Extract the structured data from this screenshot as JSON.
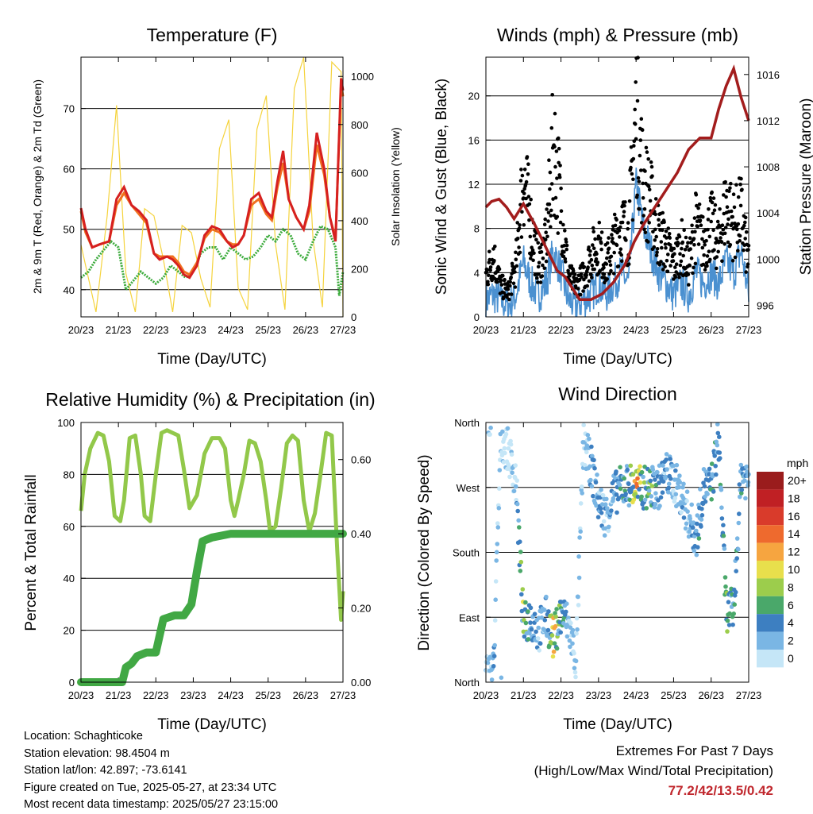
{
  "chart_data": [
    {
      "type": "line",
      "title": "Temperature (F)",
      "xlabel": "Time (Day/UTC)",
      "ylabel": "2m & 9m T (Red, Orange) & 2m Td (Green)",
      "ylabel_right": "Solar Insolation (Yellow)",
      "x_ticks": [
        "20/23",
        "21/23",
        "22/23",
        "23/23",
        "24/23",
        "25/23",
        "26/23",
        "27/23"
      ],
      "xlim": [
        0,
        7
      ],
      "ylim": [
        35.5,
        78.5
      ],
      "y_ticks": [
        40,
        50,
        60,
        70
      ],
      "ylim_right": [
        0,
        1080
      ],
      "y_ticks_right": [
        0,
        200,
        400,
        600,
        800,
        1000
      ],
      "grid": "horizontal",
      "series": [
        {
          "name": "2m T",
          "color": "#d62020",
          "x": [
            0,
            0.12,
            0.3,
            0.5,
            0.75,
            0.95,
            1.15,
            1.35,
            1.55,
            1.75,
            1.95,
            2.1,
            2.3,
            2.45,
            2.6,
            2.75,
            2.9,
            3.1,
            3.3,
            3.5,
            3.7,
            3.9,
            4.05,
            4.2,
            4.35,
            4.55,
            4.75,
            4.95,
            5.1,
            5.25,
            5.4,
            5.55,
            5.75,
            5.95,
            6.1,
            6.3,
            6.5,
            6.65,
            6.8,
            6.95,
            7
          ],
          "y": [
            53.5,
            50,
            47,
            47.5,
            48,
            55,
            57,
            54,
            53,
            51.5,
            46,
            45,
            45.5,
            45,
            44,
            42.5,
            42,
            44,
            49,
            50.5,
            50,
            48,
            47,
            47.5,
            49,
            55,
            56,
            53,
            52,
            58,
            63,
            55,
            52,
            50,
            54,
            66,
            60,
            52,
            48,
            75,
            73
          ]
        },
        {
          "name": "9m T",
          "color": "#f07020",
          "x": [
            0,
            0.12,
            0.3,
            0.5,
            0.75,
            0.95,
            1.15,
            1.35,
            1.55,
            1.75,
            1.95,
            2.1,
            2.3,
            2.45,
            2.6,
            2.75,
            2.9,
            3.1,
            3.3,
            3.5,
            3.7,
            3.9,
            4.05,
            4.2,
            4.35,
            4.55,
            4.75,
            4.95,
            5.1,
            5.25,
            5.4,
            5.55,
            5.75,
            5.95,
            6.1,
            6.3,
            6.5,
            6.65,
            6.8,
            6.95,
            7
          ],
          "y": [
            53,
            49.5,
            47,
            47.5,
            48,
            54,
            56,
            54,
            52.5,
            51,
            46,
            45.5,
            45.5,
            45.5,
            44.5,
            43,
            42.5,
            44.5,
            48.5,
            50,
            49.5,
            48,
            47.5,
            47.5,
            49,
            54,
            55,
            52.5,
            51.5,
            57,
            61,
            55,
            52,
            50,
            53,
            64,
            59,
            52,
            48.5,
            74,
            72
          ]
        },
        {
          "name": "2m Td",
          "color": "#3cab3c",
          "x": [
            0,
            0.2,
            0.4,
            0.6,
            0.8,
            1,
            1.2,
            1.4,
            1.6,
            1.8,
            2,
            2.2,
            2.4,
            2.6,
            2.8,
            3,
            3.2,
            3.4,
            3.6,
            3.8,
            4,
            4.2,
            4.4,
            4.6,
            4.8,
            5,
            5.2,
            5.4,
            5.6,
            5.8,
            6,
            6.2,
            6.4,
            6.6,
            6.8,
            6.9,
            7
          ],
          "y": [
            42,
            43,
            45,
            46.5,
            48,
            47,
            40,
            41.5,
            43,
            42,
            41,
            42,
            44,
            43,
            42,
            43,
            46,
            47,
            47,
            45,
            47,
            46,
            45,
            45.5,
            47,
            49,
            48,
            50,
            49,
            46,
            45,
            48,
            50.5,
            50,
            47,
            39,
            43
          ]
        },
        {
          "name": "Solar Insolation",
          "axis": "right",
          "color": "#f5d33c",
          "x": [
            0,
            0.4,
            0.7,
            0.95,
            1.2,
            1.45,
            1.7,
            1.95,
            2.2,
            2.45,
            2.7,
            2.95,
            3.2,
            3.45,
            3.7,
            3.95,
            4.2,
            4.45,
            4.7,
            4.95,
            5.2,
            5.45,
            5.7,
            5.95,
            6.2,
            6.45,
            6.7,
            6.95,
            7
          ],
          "y": [
            300,
            20,
            420,
            880,
            180,
            20,
            450,
            420,
            240,
            20,
            380,
            350,
            160,
            40,
            700,
            820,
            120,
            30,
            780,
            920,
            300,
            30,
            950,
            1080,
            320,
            40,
            1060,
            1020,
            0
          ]
        }
      ]
    },
    {
      "type": "scatter",
      "title": "Winds (mph) & Pressure (mb)",
      "xlabel": "Time (Day/UTC)",
      "ylabel": "Sonic Wind & Gust (Blue, Black)",
      "ylabel_right": "Station Pressure (Maroon)",
      "x_ticks": [
        "20/23",
        "21/23",
        "22/23",
        "23/23",
        "24/23",
        "25/23",
        "26/23",
        "27/23"
      ],
      "xlim": [
        0,
        7
      ],
      "ylim": [
        0,
        23.5
      ],
      "y_ticks": [
        0,
        4,
        8,
        12,
        16,
        20
      ],
      "ylim_right": [
        995,
        1017.5
      ],
      "y_ticks_right": [
        996,
        1000,
        1004,
        1008,
        1012,
        1016
      ],
      "grid": "horizontal",
      "series": [
        {
          "name": "Sonic Wind",
          "color": "#4a90d0",
          "x": [
            0,
            0.2,
            0.4,
            0.6,
            0.8,
            1,
            1.2,
            1.4,
            1.6,
            1.8,
            2,
            2.2,
            2.4,
            2.6,
            2.8,
            3,
            3.2,
            3.4,
            3.6,
            3.8,
            4,
            4.2,
            4.4,
            4.6,
            4.8,
            5,
            5.2,
            5.4,
            5.6,
            5.8,
            6,
            6.2,
            6.4,
            6.6,
            6.8,
            7
          ],
          "y": [
            1.5,
            2,
            1.5,
            1,
            2,
            5,
            3,
            2,
            3,
            6,
            4,
            1.5,
            1,
            1.5,
            2,
            3,
            2,
            3,
            4,
            3,
            12,
            8,
            6,
            4,
            3,
            2,
            3,
            2,
            4,
            3,
            4,
            3,
            5,
            4,
            6,
            2
          ]
        },
        {
          "name": "Gust",
          "color": "#000000",
          "x": [
            0,
            0.2,
            0.4,
            0.6,
            0.8,
            1,
            1.2,
            1.4,
            1.6,
            1.8,
            2,
            2.2,
            2.4,
            2.6,
            2.8,
            3,
            3.2,
            3.4,
            3.6,
            3.8,
            4,
            4.2,
            4.4,
            4.6,
            4.8,
            5,
            5.2,
            5.4,
            5.6,
            5.8,
            6,
            6.2,
            6.4,
            6.6,
            6.8,
            7
          ],
          "y": [
            4,
            6,
            3,
            2.5,
            5,
            14,
            9,
            5,
            7,
            17,
            11,
            4,
            3,
            4,
            6,
            7,
            5,
            7,
            9,
            8,
            20,
            13,
            11,
            8,
            7,
            5,
            7,
            5,
            9,
            7,
            9,
            7,
            11,
            9,
            10,
            5
          ]
        },
        {
          "name": "Station Pressure",
          "axis": "right",
          "color": "#a31d1d",
          "x": [
            0,
            0.15,
            0.35,
            0.55,
            0.75,
            1.0,
            1.3,
            1.6,
            1.9,
            2.1,
            2.3,
            2.5,
            2.8,
            3.1,
            3.4,
            3.7,
            3.95,
            4.2,
            4.5,
            4.8,
            5.1,
            5.4,
            5.7,
            6.0,
            6.2,
            6.4,
            6.6,
            6.8,
            7.0
          ],
          "y": [
            1004.5,
            1005,
            1005.2,
            1004.5,
            1003.5,
            1004.8,
            1003,
            1001,
            999,
            998.5,
            997.5,
            996.5,
            996.5,
            997,
            998,
            999.5,
            1001.5,
            1003,
            1004.5,
            1006,
            1007.5,
            1009.5,
            1010.5,
            1010.5,
            1013,
            1015,
            1016.5,
            1014,
            1012
          ]
        }
      ]
    },
    {
      "type": "line",
      "title": "Relative Humidity (%) & Precipitation (in)",
      "xlabel": "Time (Day/UTC)",
      "ylabel": "Percent & Total Rainfall",
      "x_ticks": [
        "20/23",
        "21/23",
        "22/23",
        "23/23",
        "24/23",
        "25/23",
        "26/23",
        "27/23"
      ],
      "xlim": [
        0,
        7
      ],
      "ylim": [
        0,
        100
      ],
      "y_ticks": [
        0,
        20,
        40,
        60,
        80,
        100
      ],
      "ylim_right": [
        0,
        0.7
      ],
      "y_ticks_right": [
        "0.00",
        "0.20",
        "0.40",
        "0.60"
      ],
      "grid": "horizontal",
      "series": [
        {
          "name": "Relative Humidity",
          "color": "#92c84a",
          "x": [
            0,
            0.1,
            0.25,
            0.45,
            0.6,
            0.75,
            0.9,
            1.05,
            1.15,
            1.3,
            1.45,
            1.6,
            1.7,
            1.85,
            2.0,
            2.15,
            2.3,
            2.45,
            2.6,
            2.75,
            2.9,
            3.1,
            3.3,
            3.5,
            3.7,
            3.85,
            4.0,
            4.1,
            4.2,
            4.35,
            4.5,
            4.65,
            4.8,
            4.95,
            5.05,
            5.2,
            5.35,
            5.5,
            5.65,
            5.8,
            5.95,
            6.1,
            6.25,
            6.4,
            6.55,
            6.7,
            6.85,
            6.95,
            7
          ],
          "y": [
            66,
            80,
            90,
            96,
            95,
            85,
            64,
            62,
            70,
            94,
            95,
            80,
            64,
            62,
            80,
            96,
            97,
            96,
            95,
            82,
            67,
            72,
            88,
            94,
            94,
            90,
            70,
            64,
            70,
            80,
            93,
            92,
            85,
            70,
            58,
            60,
            75,
            92,
            95,
            93,
            70,
            58,
            65,
            80,
            96,
            95,
            50,
            24,
            35
          ]
        },
        {
          "name": "Total Rainfall",
          "axis": "right",
          "color": "#41a844",
          "x": [
            0,
            0.6,
            1.1,
            1.2,
            1.35,
            1.5,
            1.75,
            2.0,
            2.2,
            2.5,
            2.75,
            2.95,
            3.1,
            3.25,
            3.5,
            3.75,
            4.0,
            4.5,
            5.0,
            6.0,
            7.0
          ],
          "y": [
            0,
            0,
            0,
            0.04,
            0.05,
            0.07,
            0.08,
            0.08,
            0.17,
            0.18,
            0.18,
            0.21,
            0.3,
            0.38,
            0.39,
            0.395,
            0.4,
            0.4,
            0.4,
            0.4,
            0.4
          ]
        }
      ]
    },
    {
      "type": "scatter",
      "title": "Wind Direction",
      "xlabel": "Time (Day/UTC)",
      "ylabel": "Direction (Colored By Speed)",
      "x_ticks": [
        "20/23",
        "21/23",
        "22/23",
        "23/23",
        "24/23",
        "25/23",
        "26/23",
        "27/23"
      ],
      "xlim": [
        0,
        7
      ],
      "y_ticks": [
        "North",
        "East",
        "South",
        "West",
        "North"
      ],
      "grid": "horizontal",
      "colorbar": {
        "title": "mph",
        "labels": [
          "20+",
          "18",
          "16",
          "14",
          "12",
          "10",
          "8",
          "6",
          "4",
          "2",
          "0"
        ],
        "colors": [
          "#9a1c1c",
          "#c02024",
          "#d93b2b",
          "#ee6a2e",
          "#f6a540",
          "#e8df4c",
          "#9ccd4c",
          "#4aa86a",
          "#3d7fc1",
          "#7ab6e4",
          "#c5e6f7"
        ]
      },
      "series": [
        {
          "name": "Direction",
          "x": [
            0,
            0.2,
            0.4,
            0.6,
            0.8,
            1,
            1.2,
            1.4,
            1.6,
            1.8,
            2,
            2.2,
            2.4,
            2.6,
            2.8,
            3,
            3.2,
            3.4,
            3.6,
            3.8,
            4,
            4.2,
            4.4,
            4.6,
            4.8,
            5,
            5.2,
            5.4,
            5.6,
            5.8,
            6,
            6.2,
            6.4,
            6.6,
            6.8,
            7
          ],
          "y": [
            10,
            15,
            340,
            320,
            280,
            80,
            90,
            70,
            90,
            60,
            95,
            80,
            30,
            330,
            300,
            250,
            230,
            260,
            270,
            275,
            270,
            270,
            270,
            270,
            290,
            280,
            260,
            230,
            200,
            270,
            270,
            340,
            100,
            100,
            290,
            280
          ]
        }
      ]
    }
  ],
  "info": {
    "location": "Location: Schaghticoke",
    "elevation": "Station elevation: 98.4504 m",
    "latlon": "Station lat/lon: 42.897; -73.6141",
    "created": "Figure created on Tue, 2025-05-27, at 23:34 UTC",
    "recent": "Most recent data timestamp: 2025/05/27 23:15:00"
  },
  "extremes": {
    "heading": "Extremes For Past 7 Days",
    "subheading": "(High/Low/Max Wind/Total Precipitation)",
    "values": "77.2/42/13.5/0.42"
  }
}
